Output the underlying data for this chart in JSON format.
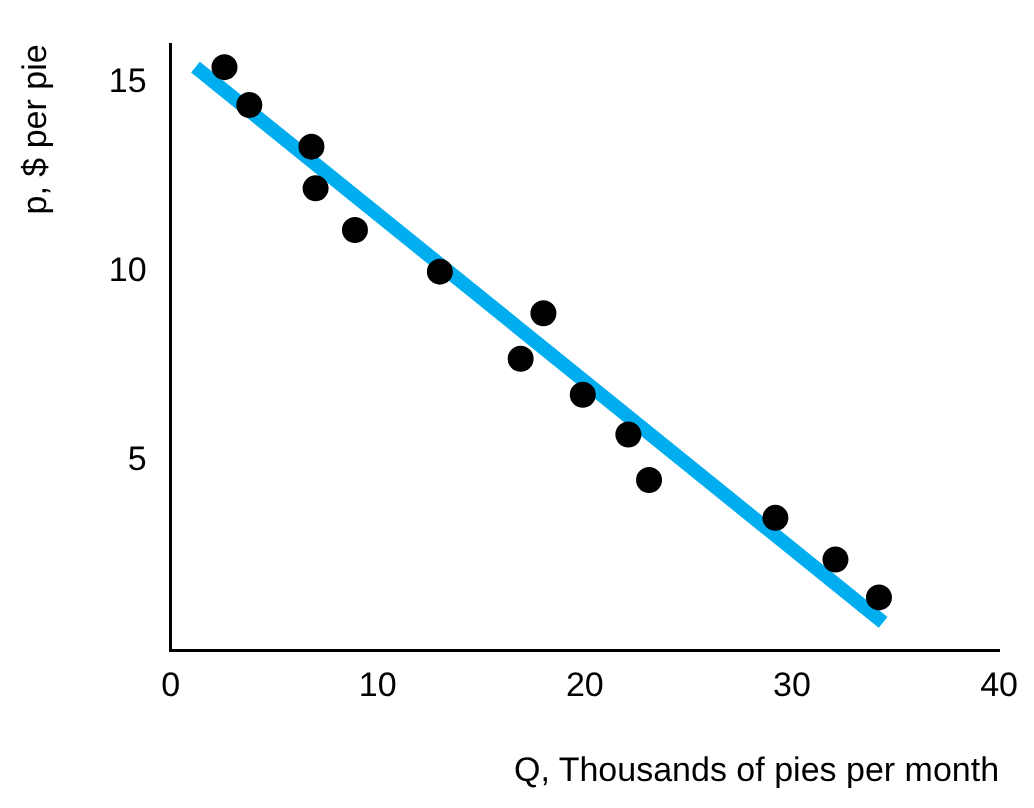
{
  "chart_data": {
    "type": "scatter",
    "xlabel": "Q, Thousands of pies per month",
    "ylabel": "p, $ per pie",
    "xlim": [
      0,
      40
    ],
    "xticks": [
      0,
      10,
      20,
      30,
      40
    ],
    "ylim": [
      0,
      16
    ],
    "yticks": [
      5,
      10,
      15
    ],
    "grid": false,
    "legend": false,
    "series": [
      {
        "marker": "circle",
        "color": "#000000",
        "x": [
          2.6,
          3.8,
          6.8,
          7.0,
          8.9,
          13.0,
          16.9,
          18.0,
          19.9,
          22.1,
          23.1,
          29.2,
          32.1,
          34.2
        ],
        "values": [
          15.4,
          14.4,
          13.3,
          12.2,
          11.1,
          10.0,
          7.7,
          8.9,
          6.75,
          5.7,
          4.5,
          3.5,
          2.4,
          1.4
        ]
      },
      {
        "type": "line",
        "marker": "none",
        "color": "#00aeef",
        "x": [
          1.2,
          34.4
        ],
        "values": [
          15.4,
          0.74
        ],
        "line_style": "solid"
      }
    ]
  }
}
